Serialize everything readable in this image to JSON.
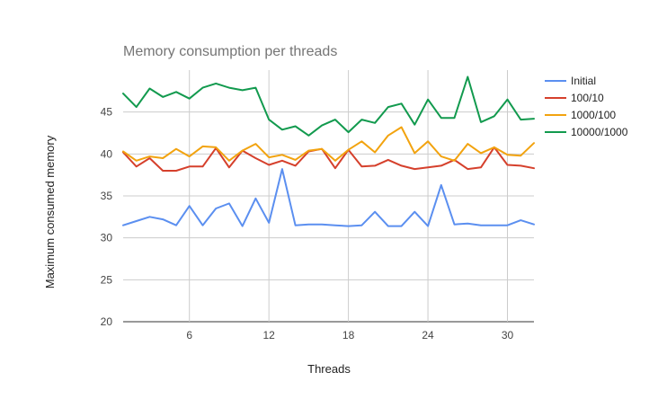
{
  "chart_data": {
    "type": "line",
    "title": "Memory consumption per threads",
    "xlabel": "Threads",
    "ylabel": "Maximum consumed memory",
    "xlim": [
      1,
      32
    ],
    "ylim": [
      20,
      50
    ],
    "xticks": [
      6,
      12,
      18,
      24,
      30
    ],
    "yticks": [
      20,
      25,
      30,
      35,
      40,
      45
    ],
    "grid": true,
    "legend_position": "right",
    "x": [
      1,
      2,
      3,
      4,
      5,
      6,
      7,
      8,
      9,
      10,
      11,
      12,
      13,
      14,
      15,
      16,
      17,
      18,
      19,
      20,
      21,
      22,
      23,
      24,
      25,
      26,
      27,
      28,
      29,
      30,
      31,
      32
    ],
    "series": [
      {
        "name": "Initial",
        "color": "#5b8ff0",
        "values": [
          31.5,
          32.0,
          32.5,
          32.2,
          31.5,
          33.8,
          31.5,
          33.5,
          34.1,
          31.4,
          34.7,
          31.8,
          38.2,
          31.5,
          31.6,
          31.6,
          31.5,
          31.4,
          31.5,
          33.1,
          31.4,
          31.4,
          33.1,
          31.4,
          36.3,
          31.6,
          31.7,
          31.5,
          31.5,
          31.5,
          32.1,
          31.6
        ]
      },
      {
        "name": "100/10",
        "color": "#d5402c",
        "values": [
          40.2,
          38.5,
          39.5,
          38.0,
          38.0,
          38.5,
          38.5,
          40.7,
          38.4,
          40.4,
          39.5,
          38.7,
          39.2,
          38.6,
          40.3,
          40.6,
          38.3,
          40.5,
          38.5,
          38.6,
          39.3,
          38.6,
          38.2,
          38.4,
          38.6,
          39.3,
          38.2,
          38.4,
          40.8,
          38.7,
          38.6,
          38.3
        ]
      },
      {
        "name": "1000/100",
        "color": "#f2a30f",
        "values": [
          40.3,
          39.2,
          39.7,
          39.5,
          40.6,
          39.7,
          40.9,
          40.8,
          39.2,
          40.4,
          41.2,
          39.6,
          39.9,
          39.3,
          40.4,
          40.6,
          39.2,
          40.5,
          41.5,
          40.2,
          42.2,
          43.2,
          40.1,
          41.5,
          39.7,
          39.2,
          41.2,
          40.1,
          40.8,
          39.9,
          39.8,
          41.3
        ]
      },
      {
        "name": "10000/1000",
        "color": "#129a4e",
        "values": [
          47.2,
          45.6,
          47.8,
          46.8,
          47.4,
          46.6,
          47.9,
          48.4,
          47.9,
          47.6,
          47.9,
          44.1,
          42.9,
          43.3,
          42.2,
          43.4,
          44.1,
          42.6,
          44.1,
          43.7,
          45.6,
          46.0,
          43.5,
          46.5,
          44.3,
          44.3,
          49.2,
          43.8,
          44.5,
          46.5,
          44.1,
          44.2
        ]
      }
    ]
  }
}
